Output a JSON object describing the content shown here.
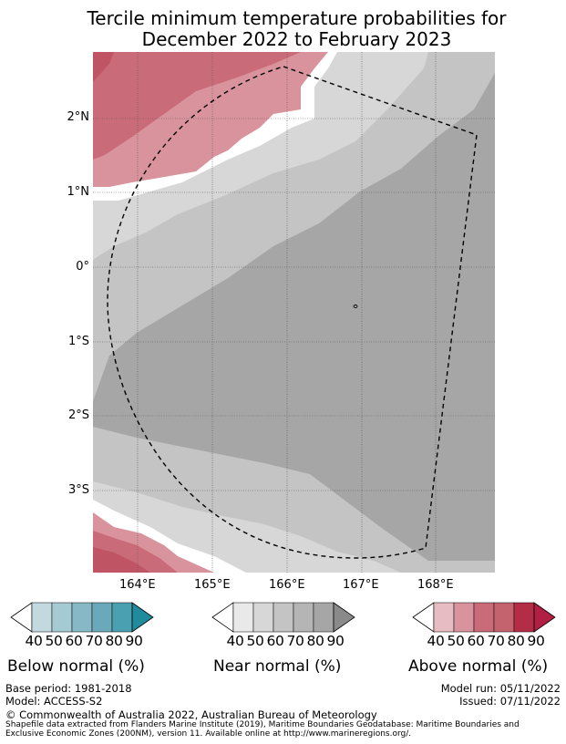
{
  "title": {
    "line1": "Tercile minimum temperature probabilities for",
    "line2": "December 2022 to February 2023"
  },
  "map": {
    "lat_labels": [
      "2°N",
      "1°N",
      "0°",
      "1°S",
      "2°S",
      "3°S"
    ],
    "lon_labels": [
      "164°E",
      "165°E",
      "166°E",
      "167°E",
      "168°E"
    ],
    "colors": {
      "near_60": "#d7d7d7",
      "near_70": "#c4c4c4",
      "near_80": "#a6a6a6",
      "above_50": "#d9939c",
      "above_60": "#c96b78",
      "above_70": "#bf5564"
    }
  },
  "colorbars": {
    "below": {
      "title": "Below normal (%)",
      "ticks": [
        "40",
        "50",
        "60",
        "70",
        "80",
        "90"
      ],
      "colors": [
        "#c1d9df",
        "#a5cad2",
        "#86b8c5",
        "#6aa9b9",
        "#4aa0b0",
        "#208b9d"
      ]
    },
    "near": {
      "title": "Near normal (%)",
      "ticks": [
        "40",
        "50",
        "60",
        "70",
        "80",
        "90"
      ],
      "colors": [
        "#e9e9e9",
        "#d7d7d7",
        "#c4c4c4",
        "#b5b5b5",
        "#a6a6a6",
        "#8a8a8a"
      ]
    },
    "above": {
      "title": "Above normal (%)",
      "ticks": [
        "40",
        "50",
        "60",
        "70",
        "80",
        "90"
      ],
      "colors": [
        "#e7bcc2",
        "#d9939c",
        "#c96b78",
        "#c4626d",
        "#b32d47",
        "#b11f42"
      ]
    }
  },
  "footer": {
    "base_period": "Base period: 1981-2018",
    "model": "Model: ACCESS-S2",
    "model_run": "Model run: 05/11/2022",
    "issued": "Issued: 07/11/2022",
    "copyright": "© Commonwealth of Australia 2022, Australian Bureau of Meteorology",
    "shapefile_line1": "Shapefile data extracted from Flanders Marine Institute (2019), Maritime Boundaries Geodatabase: Maritime Boundaries and",
    "shapefile_line2": "Exclusive Economic Zones (200NM), version 11. Available online at http://www.marineregions.org/."
  }
}
